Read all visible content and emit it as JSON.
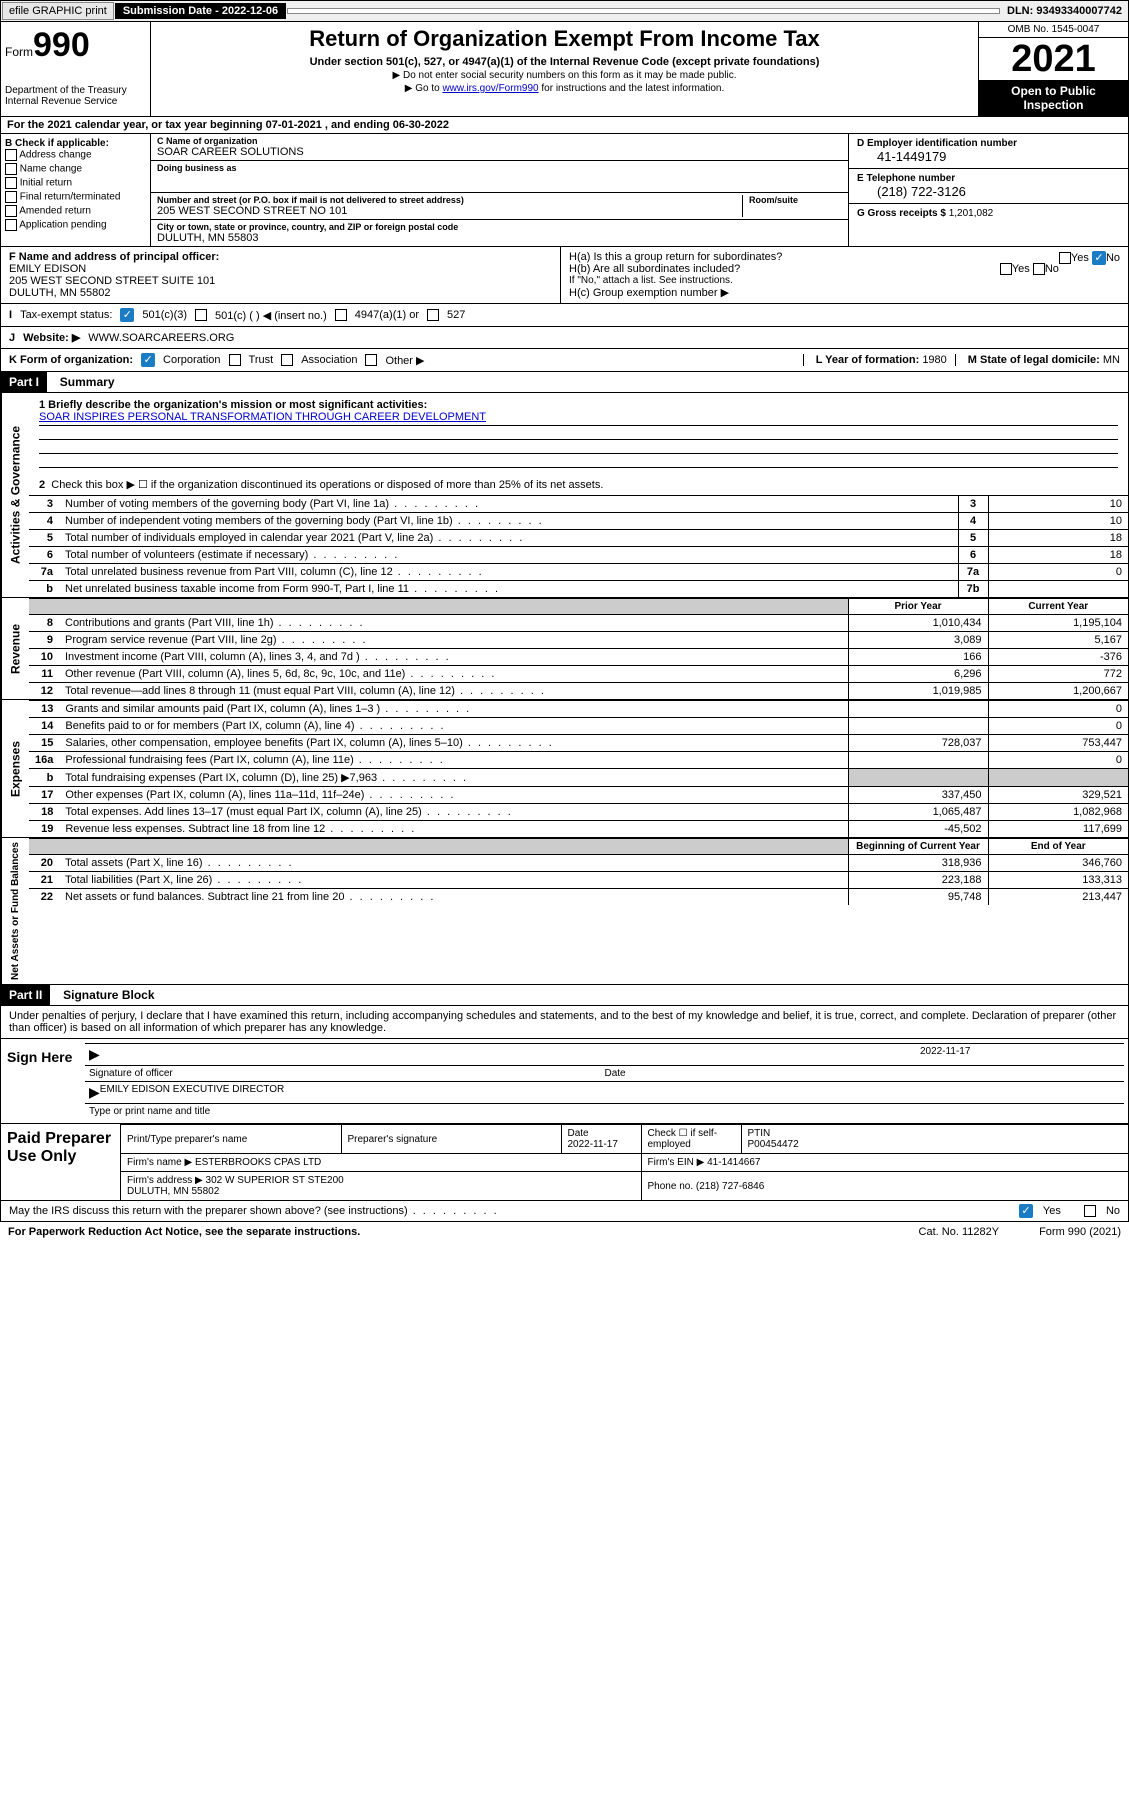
{
  "top": {
    "efile": "efile GRAPHIC print",
    "sub_label": "Submission Date - 2022-12-06",
    "dln": "DLN: 93493340007742"
  },
  "header": {
    "form_word": "Form",
    "form_num": "990",
    "title": "Return of Organization Exempt From Income Tax",
    "sub": "Under section 501(c), 527, or 4947(a)(1) of the Internal Revenue Code (except private foundations)",
    "note1": "▶ Do not enter social security numbers on this form as it may be made public.",
    "note2_pre": "▶ Go to ",
    "note2_link": "www.irs.gov/Form990",
    "note2_post": " for instructions and the latest information.",
    "dept": "Department of the Treasury\nInternal Revenue Service",
    "omb": "OMB No. 1545-0047",
    "year": "2021",
    "open": "Open to Public Inspection"
  },
  "a": "For the 2021 calendar year, or tax year beginning 07-01-2021   , and ending 06-30-2022",
  "b": {
    "hdr": "B Check if applicable:",
    "addr": "Address change",
    "name": "Name change",
    "init": "Initial return",
    "final": "Final return/terminated",
    "amend": "Amended return",
    "app": "Application pending"
  },
  "c": {
    "name_label": "C Name of organization",
    "name": "SOAR CAREER SOLUTIONS",
    "dba_label": "Doing business as",
    "street_label": "Number and street (or P.O. box if mail is not delivered to street address)",
    "street": "205 WEST SECOND STREET NO 101",
    "room_label": "Room/suite",
    "city_label": "City or town, state or province, country, and ZIP or foreign postal code",
    "city": "DULUTH, MN  55803"
  },
  "d": {
    "ein_label": "D Employer identification number",
    "ein": "41-1449179",
    "tel_label": "E Telephone number",
    "tel": "(218) 722-3126",
    "gross_label": "G Gross receipts $",
    "gross": "1,201,082"
  },
  "f": {
    "label": "F  Name and address of principal officer:",
    "name": "EMILY EDISON",
    "addr1": "205 WEST SECOND STREET SUITE 101",
    "addr2": "DULUTH, MN  55802"
  },
  "h": {
    "ha": "H(a)  Is this a group return for subordinates?",
    "hb": "H(b)  Are all subordinates included?",
    "hb_note": "If \"No,\" attach a list. See instructions.",
    "hc": "H(c)  Group exemption number ▶",
    "yes": "Yes",
    "no": "No"
  },
  "i": {
    "label": "Tax-exempt status:",
    "c3": "501(c)(3)",
    "c": "501(c) (  ) ◀ (insert no.)",
    "a1": "4947(a)(1) or",
    "s527": "527"
  },
  "j": {
    "label": "Website: ▶",
    "val": "WWW.SOARCAREERS.ORG"
  },
  "k": {
    "label": "K Form of organization:",
    "corp": "Corporation",
    "trust": "Trust",
    "assoc": "Association",
    "other": "Other ▶",
    "l_label": "L Year of formation:",
    "l_val": "1980",
    "m_label": "M State of legal domicile:",
    "m_val": "MN"
  },
  "part1": {
    "hdr": "Part I",
    "title": "Summary",
    "q1": "1  Briefly describe the organization's mission or most significant activities:",
    "a1": "SOAR INSPIRES PERSONAL TRANSFORMATION THROUGH CAREER DEVELOPMENT",
    "q2": "Check this box ▶ ☐  if the organization discontinued its operations or disposed of more than 25% of its net assets.",
    "lines_gov": [
      {
        "n": "3",
        "t": "Number of voting members of the governing body (Part VI, line 1a)",
        "ln": "3",
        "v": "10"
      },
      {
        "n": "4",
        "t": "Number of independent voting members of the governing body (Part VI, line 1b)",
        "ln": "4",
        "v": "10"
      },
      {
        "n": "5",
        "t": "Total number of individuals employed in calendar year 2021 (Part V, line 2a)",
        "ln": "5",
        "v": "18"
      },
      {
        "n": "6",
        "t": "Total number of volunteers (estimate if necessary)",
        "ln": "6",
        "v": "18"
      },
      {
        "n": "7a",
        "t": "Total unrelated business revenue from Part VIII, column (C), line 12",
        "ln": "7a",
        "v": "0"
      },
      {
        "n": "b",
        "t": "Net unrelated business taxable income from Form 990-T, Part I, line 11",
        "ln": "7b",
        "v": ""
      }
    ],
    "prior_hdr": "Prior Year",
    "curr_hdr": "Current Year",
    "lines_rev": [
      {
        "n": "8",
        "t": "Contributions and grants (Part VIII, line 1h)",
        "p": "1,010,434",
        "c": "1,195,104"
      },
      {
        "n": "9",
        "t": "Program service revenue (Part VIII, line 2g)",
        "p": "3,089",
        "c": "5,167"
      },
      {
        "n": "10",
        "t": "Investment income (Part VIII, column (A), lines 3, 4, and 7d )",
        "p": "166",
        "c": "-376"
      },
      {
        "n": "11",
        "t": "Other revenue (Part VIII, column (A), lines 5, 6d, 8c, 9c, 10c, and 11e)",
        "p": "6,296",
        "c": "772"
      },
      {
        "n": "12",
        "t": "Total revenue—add lines 8 through 11 (must equal Part VIII, column (A), line 12)",
        "p": "1,019,985",
        "c": "1,200,667"
      }
    ],
    "lines_exp": [
      {
        "n": "13",
        "t": "Grants and similar amounts paid (Part IX, column (A), lines 1–3 )",
        "p": "",
        "c": "0"
      },
      {
        "n": "14",
        "t": "Benefits paid to or for members (Part IX, column (A), line 4)",
        "p": "",
        "c": "0"
      },
      {
        "n": "15",
        "t": "Salaries, other compensation, employee benefits (Part IX, column (A), lines 5–10)",
        "p": "728,037",
        "c": "753,447"
      },
      {
        "n": "16a",
        "t": "Professional fundraising fees (Part IX, column (A), line 11e)",
        "p": "",
        "c": "0"
      },
      {
        "n": "b",
        "t": "Total fundraising expenses (Part IX, column (D), line 25) ▶7,963",
        "p": "shaded",
        "c": "shaded"
      },
      {
        "n": "17",
        "t": "Other expenses (Part IX, column (A), lines 11a–11d, 11f–24e)",
        "p": "337,450",
        "c": "329,521"
      },
      {
        "n": "18",
        "t": "Total expenses. Add lines 13–17 (must equal Part IX, column (A), line 25)",
        "p": "1,065,487",
        "c": "1,082,968"
      },
      {
        "n": "19",
        "t": "Revenue less expenses. Subtract line 18 from line 12",
        "p": "-45,502",
        "c": "117,699"
      }
    ],
    "begin_hdr": "Beginning of Current Year",
    "end_hdr": "End of Year",
    "lines_net": [
      {
        "n": "20",
        "t": "Total assets (Part X, line 16)",
        "p": "318,936",
        "c": "346,760"
      },
      {
        "n": "21",
        "t": "Total liabilities (Part X, line 26)",
        "p": "223,188",
        "c": "133,313"
      },
      {
        "n": "22",
        "t": "Net assets or fund balances. Subtract line 21 from line 20",
        "p": "95,748",
        "c": "213,447"
      }
    ],
    "side_gov": "Activities & Governance",
    "side_rev": "Revenue",
    "side_exp": "Expenses",
    "side_net": "Net Assets or Fund Balances"
  },
  "part2": {
    "hdr": "Part II",
    "title": "Signature Block",
    "intro": "Under penalties of perjury, I declare that I have examined this return, including accompanying schedules and statements, and to the best of my knowledge and belief, it is true, correct, and complete. Declaration of preparer (other than officer) is based on all information of which preparer has any knowledge.",
    "sign_here": "Sign Here",
    "sig_officer": "Signature of officer",
    "sig_date": "2022-11-17",
    "date_label": "Date",
    "officer_name": "EMILY EDISON  EXECUTIVE DIRECTOR",
    "type_label": "Type or print name and title",
    "paid": "Paid Preparer Use Only",
    "pt_name": "Print/Type preparer's name",
    "pt_sig": "Preparer's signature",
    "pt_date_l": "Date",
    "pt_date": "2022-11-17",
    "pt_check": "Check ☐ if self-employed",
    "ptin_l": "PTIN",
    "ptin": "P00454472",
    "firm_name_l": "Firm's name    ▶",
    "firm_name": "ESTERBROOKS CPAS LTD",
    "firm_ein_l": "Firm's EIN ▶",
    "firm_ein": "41-1414667",
    "firm_addr_l": "Firm's address ▶",
    "firm_addr": "302 W SUPERIOR ST STE200\nDULUTH, MN  55802",
    "phone_l": "Phone no.",
    "phone": "(218) 727-6846",
    "discuss": "May the IRS discuss this return with the preparer shown above? (see instructions)",
    "yes": "Yes",
    "no": "No"
  },
  "footer": {
    "pra": "For Paperwork Reduction Act Notice, see the separate instructions.",
    "cat": "Cat. No. 11282Y",
    "form": "Form 990 (2021)"
  }
}
